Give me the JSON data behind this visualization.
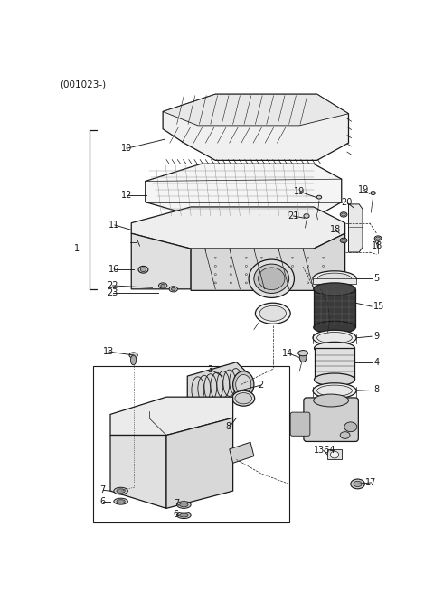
{
  "title": "(001023-)",
  "bg_color": "#ffffff",
  "lc": "#1a1a1a",
  "figsize": [
    4.8,
    6.76
  ],
  "dpi": 100,
  "font_size": 7.0,
  "lw_main": 0.9,
  "lw_thin": 0.5,
  "lw_leader": 0.7
}
